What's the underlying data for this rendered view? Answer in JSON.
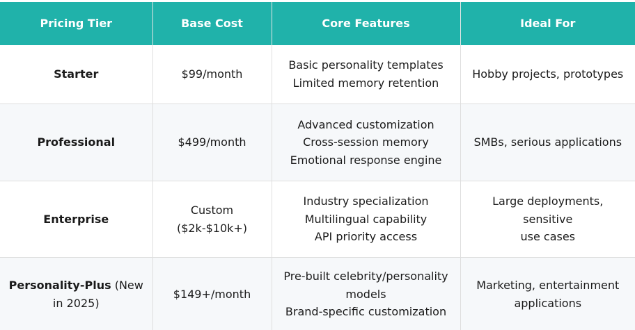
{
  "table": {
    "headers": [
      "Pricing Tier",
      "Base Cost",
      "Core Features",
      "Ideal For"
    ],
    "rows": [
      {
        "tier": "Starter",
        "tier_suffix": "",
        "cost_lines": [
          "$99/month"
        ],
        "feature_lines": [
          "Basic personality templates",
          "Limited memory retention"
        ],
        "ideal_lines": [
          "Hobby projects, prototypes"
        ]
      },
      {
        "tier": "Professional",
        "tier_suffix": "",
        "cost_lines": [
          "$499/month"
        ],
        "feature_lines": [
          "Advanced customization",
          "Cross-session memory",
          "Emotional response engine"
        ],
        "ideal_lines": [
          "SMBs, serious applications"
        ]
      },
      {
        "tier": "Enterprise",
        "tier_suffix": "",
        "cost_lines": [
          "Custom",
          "($2k-$10k+)"
        ],
        "feature_lines": [
          "Industry specialization",
          "Multilingual capability",
          "API priority access"
        ],
        "ideal_lines": [
          "Large deployments, sensitive",
          "use cases"
        ]
      },
      {
        "tier": "Personality-Plus",
        "tier_suffix": " (New",
        "tier_line2": "in 2025)",
        "cost_lines": [
          "$149+/month"
        ],
        "feature_lines": [
          "Pre-built celebrity/personality",
          "models",
          "Brand-specific customization"
        ],
        "ideal_lines": [
          "Marketing, entertainment",
          "applications"
        ]
      }
    ]
  }
}
